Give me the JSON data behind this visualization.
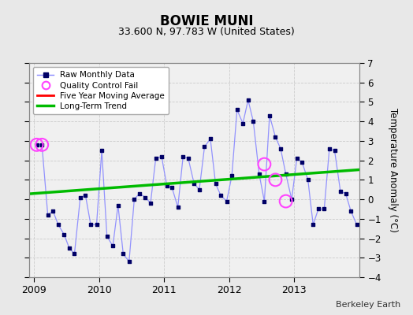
{
  "title": "BOWIE MUNI",
  "subtitle": "33.600 N, 97.783 W (United States)",
  "ylabel": "Temperature Anomaly (°C)",
  "attribution": "Berkeley Earth",
  "ylim": [
    -4,
    7
  ],
  "yticks": [
    -4,
    -3,
    -2,
    -1,
    0,
    1,
    2,
    3,
    4,
    5,
    6,
    7
  ],
  "xlim": [
    2008.92,
    2014.0
  ],
  "bg_color": "#e8e8e8",
  "plot_bg_color": "#f0f0f0",
  "raw_x": [
    2009.04,
    2009.12,
    2009.21,
    2009.29,
    2009.37,
    2009.46,
    2009.54,
    2009.62,
    2009.71,
    2009.79,
    2009.87,
    2009.96,
    2010.04,
    2010.12,
    2010.21,
    2010.29,
    2010.37,
    2010.46,
    2010.54,
    2010.62,
    2010.71,
    2010.79,
    2010.87,
    2010.96,
    2011.04,
    2011.12,
    2011.21,
    2011.29,
    2011.37,
    2011.46,
    2011.54,
    2011.62,
    2011.71,
    2011.79,
    2011.87,
    2011.96,
    2012.04,
    2012.12,
    2012.21,
    2012.29,
    2012.37,
    2012.46,
    2012.54,
    2012.62,
    2012.71,
    2012.79,
    2012.87,
    2012.96,
    2013.04,
    2013.12,
    2013.21,
    2013.29,
    2013.37,
    2013.46,
    2013.54,
    2013.62,
    2013.71,
    2013.79,
    2013.87,
    2013.96
  ],
  "raw_y": [
    2.8,
    2.8,
    -0.8,
    -0.6,
    -1.3,
    -1.8,
    -2.5,
    -2.8,
    0.1,
    0.2,
    -1.3,
    -1.3,
    2.5,
    -1.9,
    -2.4,
    -0.3,
    -2.8,
    -3.2,
    0.0,
    0.3,
    0.1,
    -0.2,
    2.1,
    2.2,
    0.7,
    0.6,
    -0.4,
    2.2,
    2.1,
    0.8,
    0.5,
    2.7,
    3.1,
    0.8,
    0.2,
    -0.1,
    1.2,
    4.6,
    3.9,
    5.1,
    4.0,
    1.3,
    -0.1,
    4.3,
    3.2,
    2.6,
    1.3,
    0.0,
    2.1,
    1.9,
    1.0,
    -1.3,
    -0.5,
    -0.5,
    2.6,
    2.5,
    0.4,
    0.3,
    -0.6,
    -1.3
  ],
  "qc_fail_x": [
    2009.04,
    2009.12,
    2012.54,
    2012.71,
    2012.87
  ],
  "qc_fail_y": [
    2.8,
    2.8,
    1.8,
    1.0,
    -0.1
  ],
  "trend_x": [
    2008.92,
    2014.0
  ],
  "trend_y": [
    0.28,
    1.52
  ],
  "line_color": "#8888ff",
  "marker_color": "#000080",
  "qc_color": "#ff44ff",
  "trend_color": "#00bb00",
  "ma_color": "#ff0000",
  "grid_color": "#cccccc",
  "xticks": [
    2009,
    2010,
    2011,
    2012,
    2013
  ],
  "xtick_labels": [
    "2009",
    "2010",
    "2011",
    "2012",
    "2013"
  ]
}
